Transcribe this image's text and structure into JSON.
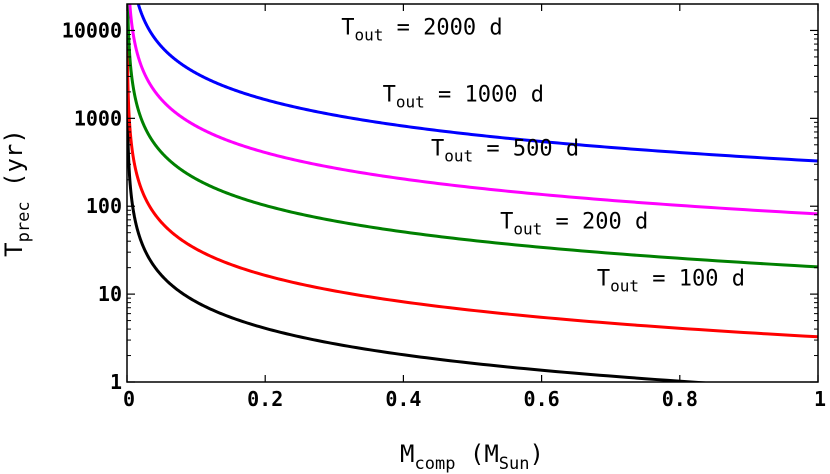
{
  "chart_data": {
    "type": "line",
    "xlabel": {
      "main": "M",
      "sub": "comp",
      "open": " (M",
      "sub2": "Sun",
      "close": ")"
    },
    "ylabel": {
      "main": "T",
      "sub": "prec",
      "rest": " (yr)"
    },
    "xlim": [
      0,
      1
    ],
    "ylim": [
      1,
      20000
    ],
    "yscale": "log",
    "grid": false,
    "x_ticks": [
      {
        "value": 0,
        "label": "0"
      },
      {
        "value": 0.2,
        "label": "0.2"
      },
      {
        "value": 0.4,
        "label": "0.4"
      },
      {
        "value": 0.6,
        "label": "0.6"
      },
      {
        "value": 0.8,
        "label": "0.8"
      },
      {
        "value": 1,
        "label": "1"
      }
    ],
    "y_ticks": [
      {
        "value": 1,
        "label": "1"
      },
      {
        "value": 10,
        "label": "10"
      },
      {
        "value": 100,
        "label": "100"
      },
      {
        "value": 1000,
        "label": "1000"
      },
      {
        "value": 10000,
        "label": "10000"
      }
    ],
    "series": [
      {
        "period_days": 100,
        "color": "#000000",
        "label_main": "T",
        "label_sub": "out",
        "label_rest": " = 100 d",
        "label_at": [
          0.68,
          12.5
        ]
      },
      {
        "period_days": 200,
        "color": "#ff0000",
        "label_main": "T",
        "label_sub": "out",
        "label_rest": " = 200 d",
        "label_at": [
          0.54,
          56
        ]
      },
      {
        "period_days": 500,
        "color": "#008000",
        "label_main": "T",
        "label_sub": "out",
        "label_rest": " = 500 d",
        "label_at": [
          0.44,
          380
        ]
      },
      {
        "period_days": 1000,
        "color": "#ff00ff",
        "label_main": "T",
        "label_sub": "out",
        "label_rest": " = 1000 d",
        "label_at": [
          0.37,
          1550
        ]
      },
      {
        "period_days": 2000,
        "color": "#0000ff",
        "label_main": "T",
        "label_sub": "out",
        "label_rest": " = 2000 d",
        "label_at": [
          0.31,
          9000
        ]
      }
    ]
  }
}
